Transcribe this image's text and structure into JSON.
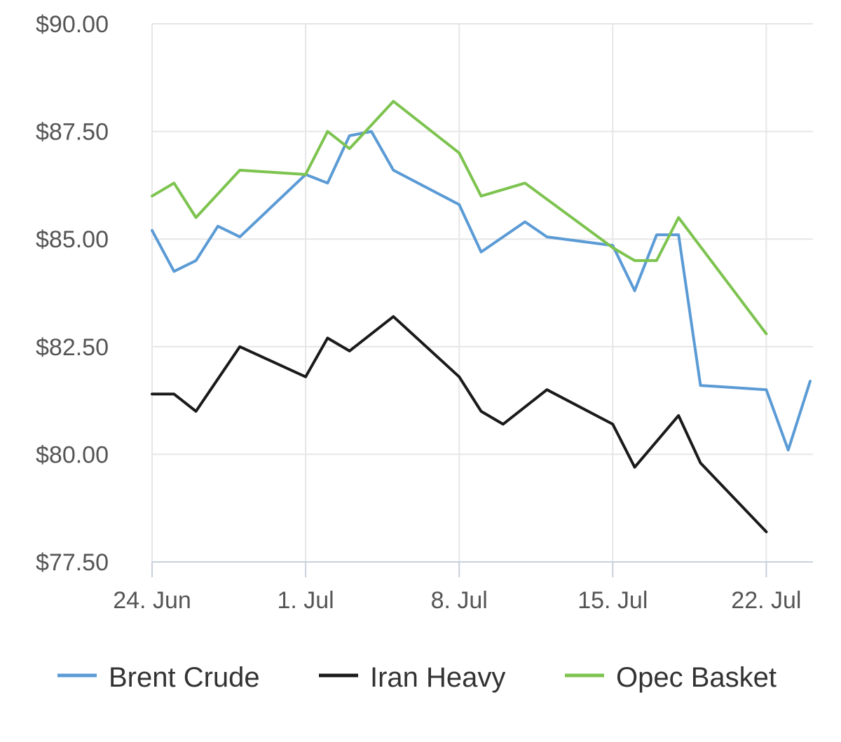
{
  "chart_data": {
    "type": "line",
    "title": "",
    "xlabel": "",
    "ylabel": "",
    "ylim": [
      77.5,
      90
    ],
    "y_ticks": [
      {
        "value": 77.5,
        "label": "$77.50"
      },
      {
        "value": 80,
        "label": "$80.00"
      },
      {
        "value": 82.5,
        "label": "$82.50"
      },
      {
        "value": 85,
        "label": "$85.00"
      },
      {
        "value": 87.5,
        "label": "$87.50"
      },
      {
        "value": 90,
        "label": "$90.00"
      }
    ],
    "x_start": "2019-06-24",
    "x_end": "2019-07-24",
    "x_ticks": [
      {
        "date": "2019-06-24",
        "label": "24. Jun"
      },
      {
        "date": "2019-07-01",
        "label": "1. Jul"
      },
      {
        "date": "2019-07-08",
        "label": "8. Jul"
      },
      {
        "date": "2019-07-15",
        "label": "15. Jul"
      },
      {
        "date": "2019-07-22",
        "label": "22. Jul"
      }
    ],
    "grid": true,
    "legend_position": "bottom",
    "series": [
      {
        "name": "Brent Crude",
        "color": "#5b9bd5",
        "points": [
          {
            "x": "2019-06-24",
            "y": 85.2
          },
          {
            "x": "2019-06-25",
            "y": 84.25
          },
          {
            "x": "2019-06-26",
            "y": 84.5
          },
          {
            "x": "2019-06-27",
            "y": 85.3
          },
          {
            "x": "2019-06-28",
            "y": 85.05
          },
          {
            "x": "2019-07-01",
            "y": 86.5
          },
          {
            "x": "2019-07-02",
            "y": 86.3
          },
          {
            "x": "2019-07-03",
            "y": 87.4
          },
          {
            "x": "2019-07-04",
            "y": 87.5
          },
          {
            "x": "2019-07-05",
            "y": 86.6
          },
          {
            "x": "2019-07-08",
            "y": 85.8
          },
          {
            "x": "2019-07-09",
            "y": 84.7
          },
          {
            "x": "2019-07-11",
            "y": 85.4
          },
          {
            "x": "2019-07-12",
            "y": 85.05
          },
          {
            "x": "2019-07-15",
            "y": 84.85
          },
          {
            "x": "2019-07-16",
            "y": 83.8
          },
          {
            "x": "2019-07-17",
            "y": 85.1
          },
          {
            "x": "2019-07-18",
            "y": 85.1
          },
          {
            "x": "2019-07-19",
            "y": 81.6
          },
          {
            "x": "2019-07-22",
            "y": 81.5
          },
          {
            "x": "2019-07-23",
            "y": 80.1
          },
          {
            "x": "2019-07-24",
            "y": 81.7
          }
        ]
      },
      {
        "name": "Iran Heavy",
        "color": "#1a1a1a",
        "points": [
          {
            "x": "2019-06-24",
            "y": 81.4
          },
          {
            "x": "2019-06-25",
            "y": 81.4
          },
          {
            "x": "2019-06-26",
            "y": 81.0
          },
          {
            "x": "2019-06-28",
            "y": 82.5
          },
          {
            "x": "2019-07-01",
            "y": 81.8
          },
          {
            "x": "2019-07-02",
            "y": 82.7
          },
          {
            "x": "2019-07-03",
            "y": 82.4
          },
          {
            "x": "2019-07-05",
            "y": 83.2
          },
          {
            "x": "2019-07-08",
            "y": 81.8
          },
          {
            "x": "2019-07-09",
            "y": 81.0
          },
          {
            "x": "2019-07-10",
            "y": 80.7
          },
          {
            "x": "2019-07-12",
            "y": 81.5
          },
          {
            "x": "2019-07-15",
            "y": 80.7
          },
          {
            "x": "2019-07-16",
            "y": 79.7
          },
          {
            "x": "2019-07-18",
            "y": 80.9
          },
          {
            "x": "2019-07-19",
            "y": 79.8
          },
          {
            "x": "2019-07-22",
            "y": 78.2
          }
        ]
      },
      {
        "name": "Opec Basket",
        "color": "#7dc34f",
        "points": [
          {
            "x": "2019-06-24",
            "y": 86.0
          },
          {
            "x": "2019-06-25",
            "y": 86.3
          },
          {
            "x": "2019-06-26",
            "y": 85.5
          },
          {
            "x": "2019-06-28",
            "y": 86.6
          },
          {
            "x": "2019-07-01",
            "y": 86.5
          },
          {
            "x": "2019-07-02",
            "y": 87.5
          },
          {
            "x": "2019-07-03",
            "y": 87.1
          },
          {
            "x": "2019-07-05",
            "y": 88.2
          },
          {
            "x": "2019-07-08",
            "y": 87.0
          },
          {
            "x": "2019-07-09",
            "y": 86.0
          },
          {
            "x": "2019-07-11",
            "y": 86.3
          },
          {
            "x": "2019-07-15",
            "y": 84.8
          },
          {
            "x": "2019-07-16",
            "y": 84.5
          },
          {
            "x": "2019-07-17",
            "y": 84.5
          },
          {
            "x": "2019-07-18",
            "y": 85.5
          },
          {
            "x": "2019-07-22",
            "y": 82.8
          }
        ]
      }
    ]
  }
}
